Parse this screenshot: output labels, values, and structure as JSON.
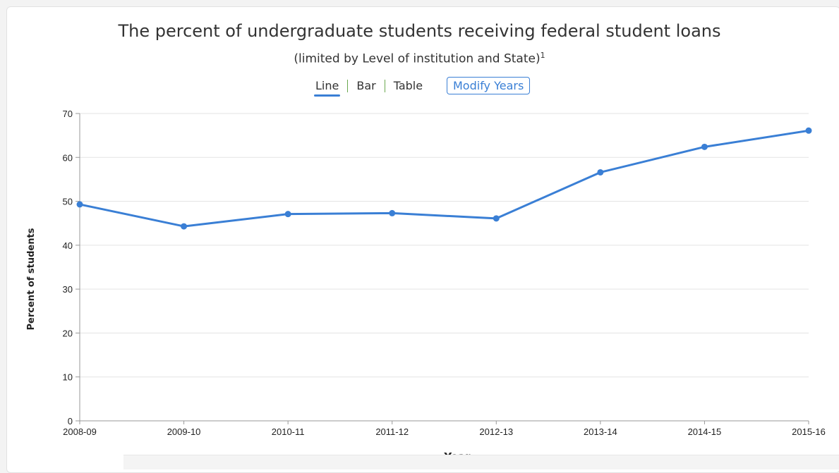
{
  "chart_data": {
    "type": "line",
    "title": "The percent of undergraduate students receiving federal student loans",
    "subtitle": "(limited by Level of institution and State)",
    "footnote_marker": "1",
    "xlabel": "Year",
    "ylabel": "Percent of students",
    "categories": [
      "2008-09",
      "2009-10",
      "2010-11",
      "2011-12",
      "2012-13",
      "2013-14",
      "2014-15",
      "2015-16"
    ],
    "values": [
      49.3,
      44.3,
      47.1,
      47.3,
      46.1,
      56.6,
      62.4,
      66.1
    ],
    "ylim": [
      0,
      70
    ],
    "yticks": [
      0,
      10,
      20,
      30,
      40,
      50,
      60,
      70
    ],
    "grid": true,
    "line_color": "#3a7fd5"
  },
  "controls": {
    "views": [
      "Line",
      "Bar",
      "Table"
    ],
    "active_view": "Line",
    "modify_label": "Modify Years"
  }
}
